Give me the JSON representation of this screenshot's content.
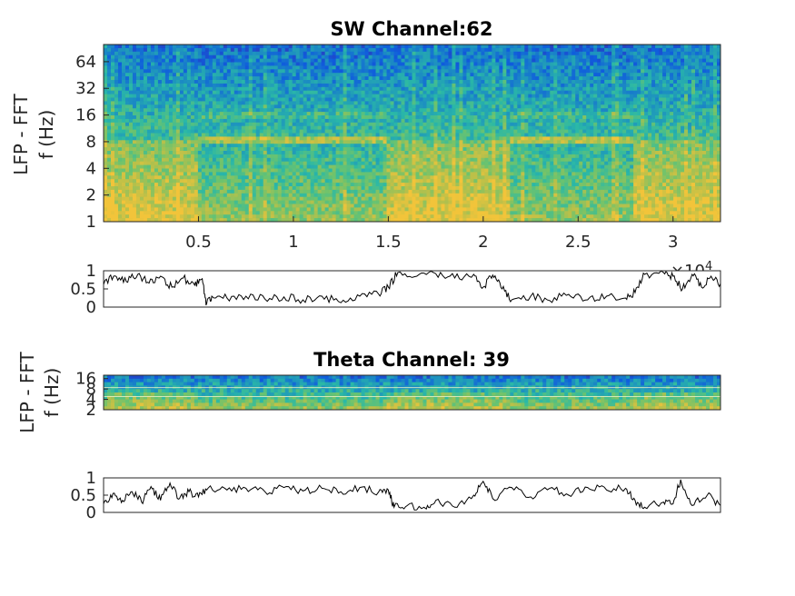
{
  "chart_data": [
    {
      "type": "heatmap",
      "title": "SW Channel:62",
      "ylabel_lines": [
        "LFP - FFT",
        "f (Hz)"
      ],
      "xlim": [
        0,
        32500
      ],
      "xticks": [
        5000,
        10000,
        15000,
        20000,
        25000,
        30000
      ],
      "xtick_labels": [
        "0.5",
        "1",
        "1.5",
        "2",
        "2.5",
        "3"
      ],
      "x_exponent_base": "×10",
      "x_exponent_power": "4",
      "y_scale": "log2",
      "ylim": [
        1,
        100
      ],
      "yticks": [
        1,
        2,
        4,
        8,
        16,
        32,
        64
      ],
      "ytick_labels": [
        "1",
        "2",
        "4",
        "8",
        "16",
        "32",
        "64"
      ],
      "colormap": [
        "#3e26a8",
        "#0f5cdd",
        "#1d91c0",
        "#2ab8a7",
        "#6cc36e",
        "#b8c04a",
        "#f2c43a"
      ],
      "high_low_power_segments": [
        {
          "x_start": 0,
          "x_end": 5000,
          "state": "broadband"
        },
        {
          "x_start": 5000,
          "x_end": 15000,
          "state": "theta_8hz"
        },
        {
          "x_start": 15000,
          "x_end": 21500,
          "state": "broadband"
        },
        {
          "x_start": 21500,
          "x_end": 28000,
          "state": "theta_8hz"
        },
        {
          "x_start": 28000,
          "x_end": 32500,
          "state": "broadband"
        }
      ],
      "theta_band_hz": 8
    },
    {
      "type": "line",
      "title": "",
      "ylim": [
        0,
        1
      ],
      "yticks": [
        0,
        0.5,
        1
      ],
      "ytick_labels": [
        "0",
        "0.5",
        "1"
      ],
      "xlim": [
        0,
        32500
      ],
      "points": [
        [
          0,
          0.62
        ],
        [
          600,
          0.86
        ],
        [
          1200,
          0.7
        ],
        [
          1800,
          0.9
        ],
        [
          2400,
          0.66
        ],
        [
          3000,
          0.85
        ],
        [
          3600,
          0.55
        ],
        [
          4200,
          0.8
        ],
        [
          4800,
          0.6
        ],
        [
          5200,
          0.78
        ],
        [
          5400,
          0.05
        ],
        [
          5700,
          0.3
        ],
        [
          6500,
          0.25
        ],
        [
          7500,
          0.3
        ],
        [
          8500,
          0.22
        ],
        [
          9500,
          0.28
        ],
        [
          10500,
          0.2
        ],
        [
          11500,
          0.3
        ],
        [
          12500,
          0.12
        ],
        [
          13500,
          0.3
        ],
        [
          14500,
          0.35
        ],
        [
          15000,
          0.55
        ],
        [
          15500,
          0.95
        ],
        [
          16500,
          0.85
        ],
        [
          17500,
          0.92
        ],
        [
          18500,
          0.8
        ],
        [
          19500,
          0.9
        ],
        [
          20000,
          0.55
        ],
        [
          20500,
          0.88
        ],
        [
          21000,
          0.5
        ],
        [
          21500,
          0.2
        ],
        [
          22500,
          0.3
        ],
        [
          23500,
          0.18
        ],
        [
          24500,
          0.35
        ],
        [
          25500,
          0.2
        ],
        [
          26500,
          0.3
        ],
        [
          27500,
          0.25
        ],
        [
          28000,
          0.4
        ],
        [
          28500,
          0.9
        ],
        [
          29500,
          0.95
        ],
        [
          30000,
          0.85
        ],
        [
          30500,
          0.5
        ],
        [
          31000,
          0.9
        ],
        [
          31500,
          0.55
        ],
        [
          32000,
          0.85
        ],
        [
          32500,
          0.65
        ]
      ]
    },
    {
      "type": "heatmap",
      "title": "Theta Channel: 39",
      "ylabel_lines": [
        "LFP - FFT",
        "f (Hz)"
      ],
      "y_scale": "log2",
      "ylim": [
        2,
        20
      ],
      "yticks": [
        2,
        4,
        8,
        16
      ],
      "ytick_labels": [
        "2",
        "4",
        "8",
        "16"
      ],
      "xlim": [
        0,
        32500
      ]
    },
    {
      "type": "line",
      "title": "",
      "ylim": [
        0,
        1
      ],
      "yticks": [
        0,
        0.5,
        1
      ],
      "ytick_labels": [
        "0",
        "0.5",
        "1"
      ],
      "xlim": [
        0,
        32500
      ],
      "points": [
        [
          0,
          0.25
        ],
        [
          500,
          0.55
        ],
        [
          1000,
          0.35
        ],
        [
          1500,
          0.6
        ],
        [
          2000,
          0.3
        ],
        [
          2500,
          0.75
        ],
        [
          3000,
          0.35
        ],
        [
          3500,
          0.85
        ],
        [
          4000,
          0.4
        ],
        [
          4500,
          0.6
        ],
        [
          5000,
          0.45
        ],
        [
          5500,
          0.7
        ],
        [
          6500,
          0.65
        ],
        [
          7500,
          0.7
        ],
        [
          8500,
          0.6
        ],
        [
          9500,
          0.72
        ],
        [
          10500,
          0.62
        ],
        [
          11500,
          0.7
        ],
        [
          12500,
          0.6
        ],
        [
          13500,
          0.72
        ],
        [
          14500,
          0.6
        ],
        [
          15000,
          0.65
        ],
        [
          15300,
          0.15
        ],
        [
          16000,
          0.2
        ],
        [
          17000,
          0.1
        ],
        [
          17500,
          0.35
        ],
        [
          18500,
          0.15
        ],
        [
          19500,
          0.5
        ],
        [
          20000,
          0.9
        ],
        [
          20500,
          0.4
        ],
        [
          21500,
          0.72
        ],
        [
          22500,
          0.45
        ],
        [
          23500,
          0.7
        ],
        [
          24500,
          0.5
        ],
        [
          25500,
          0.72
        ],
        [
          26500,
          0.65
        ],
        [
          27500,
          0.7
        ],
        [
          28000,
          0.35
        ],
        [
          28500,
          0.15
        ],
        [
          29500,
          0.3
        ],
        [
          30000,
          0.25
        ],
        [
          30400,
          0.95
        ],
        [
          31000,
          0.2
        ],
        [
          31800,
          0.5
        ],
        [
          32500,
          0.2
        ]
      ]
    }
  ]
}
